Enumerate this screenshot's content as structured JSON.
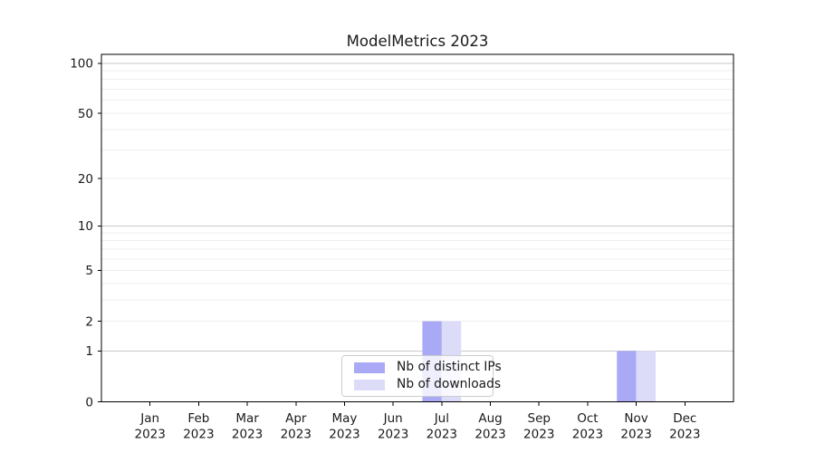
{
  "chart_data": {
    "type": "bar",
    "title": "ModelMetrics 2023",
    "categories": [
      {
        "label": "Jan",
        "year": "2023"
      },
      {
        "label": "Feb",
        "year": "2023"
      },
      {
        "label": "Mar",
        "year": "2023"
      },
      {
        "label": "Apr",
        "year": "2023"
      },
      {
        "label": "May",
        "year": "2023"
      },
      {
        "label": "Jun",
        "year": "2023"
      },
      {
        "label": "Jul",
        "year": "2023"
      },
      {
        "label": "Aug",
        "year": "2023"
      },
      {
        "label": "Sep",
        "year": "2023"
      },
      {
        "label": "Oct",
        "year": "2023"
      },
      {
        "label": "Nov",
        "year": "2023"
      },
      {
        "label": "Dec",
        "year": "2023"
      }
    ],
    "series": [
      {
        "name": "Nb of distinct IPs",
        "color": "#a9a9f5",
        "values": [
          0,
          0,
          0,
          0,
          0,
          0,
          2,
          0,
          0,
          0,
          1,
          0
        ]
      },
      {
        "name": "Nb of downloads",
        "color": "#dcdcf8",
        "values": [
          0,
          0,
          0,
          0,
          0,
          0,
          2,
          0,
          0,
          0,
          1,
          0
        ]
      }
    ],
    "yscale": "log1p",
    "ylim": [
      0,
      113
    ],
    "yticks": [
      0,
      1,
      2,
      5,
      10,
      20,
      50,
      100
    ],
    "major_gridlines": [
      1,
      10,
      100
    ],
    "minor_gridlines": [
      2,
      3,
      4,
      5,
      6,
      7,
      8,
      9,
      20,
      30,
      40,
      50,
      60,
      70,
      80,
      90
    ],
    "grid": true,
    "legend_position": "lower-center-inside",
    "colors": {
      "major_grid": "#c9c9c9",
      "minor_grid": "#efefef",
      "axis": "#000000",
      "text": "#1a1a1a",
      "legend_border": "#cccccc"
    }
  }
}
